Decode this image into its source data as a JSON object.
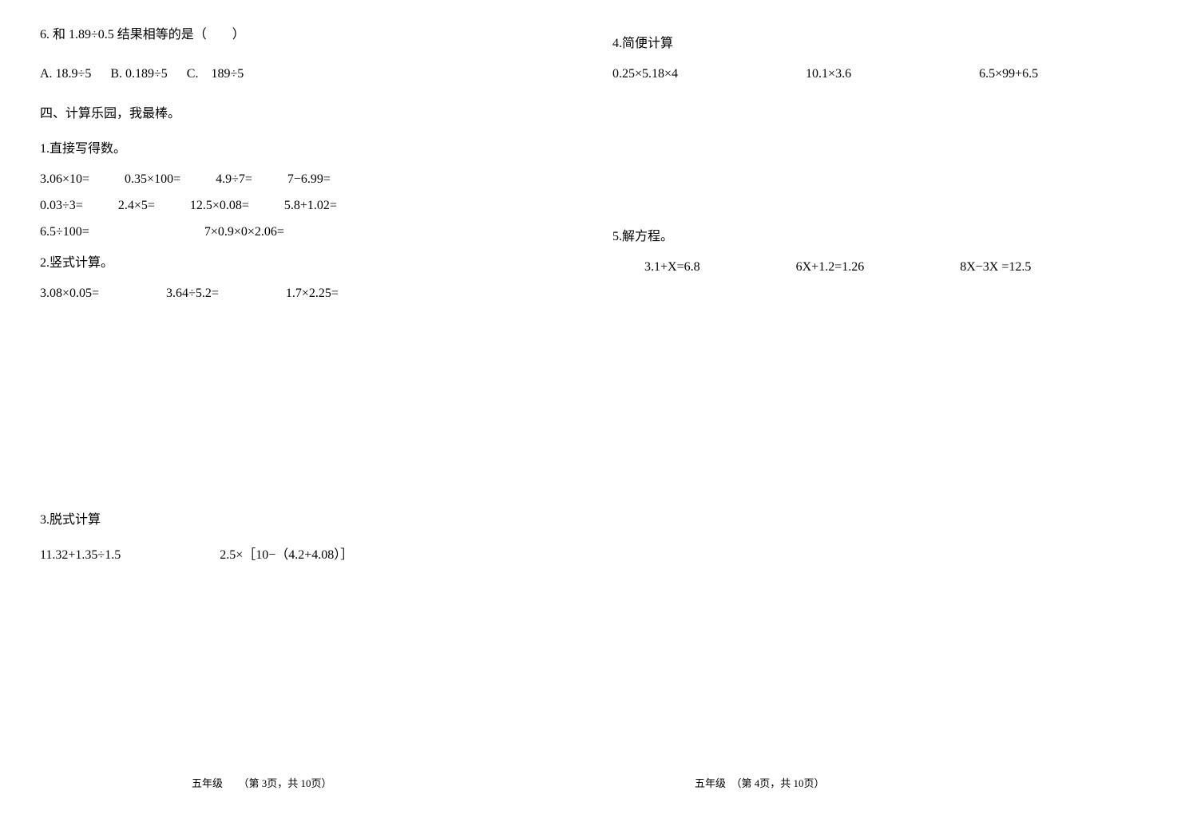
{
  "left": {
    "q6": {
      "text": "6. 和 1.89÷0.5 结果相等的是（　　）",
      "optionA": "A. 18.9÷5",
      "optionB": "B. 0.189÷5",
      "optionC": "C.　189÷5"
    },
    "sec4_heading": "四、计算乐园，我最棒。",
    "q1_heading": "1.直接写得数。",
    "row1": {
      "a": "3.06×10=",
      "b": "0.35×100=",
      "c": "4.9÷7=",
      "d": "7−6.99="
    },
    "row2": {
      "a": "0.03÷3=",
      "b": "2.4×5=",
      "c": "12.5×0.08=",
      "d": "5.8+1.02="
    },
    "row3": {
      "a": "6.5÷100=",
      "b": "7×0.9×0×2.06="
    },
    "q2_heading": "2.竖式计算。",
    "q2_row": {
      "a": "3.08×0.05=",
      "b": "3.64÷5.2=",
      "c": "1.7×2.25="
    },
    "q3_heading": "3.脱式计算",
    "q3_row": {
      "a": "11.32+1.35÷1.5",
      "b": "2.5×［10−（4.2+4.08）］"
    }
  },
  "right": {
    "q4_heading": "4.简便计算",
    "q4_row": {
      "a": "0.25×5.18×4",
      "b": "10.1×3.6",
      "c": "6.5×99+6.5"
    },
    "q5_heading": "5.解方程。",
    "q5_row": {
      "a": "3.1+X=6.8",
      "b": "6X+1.2=1.26",
      "c": "8X−3X =12.5"
    }
  },
  "footer": {
    "left": "五年级　　（第 3页，共 10页）",
    "right": "五年级　（第 4页，共 10页）"
  }
}
